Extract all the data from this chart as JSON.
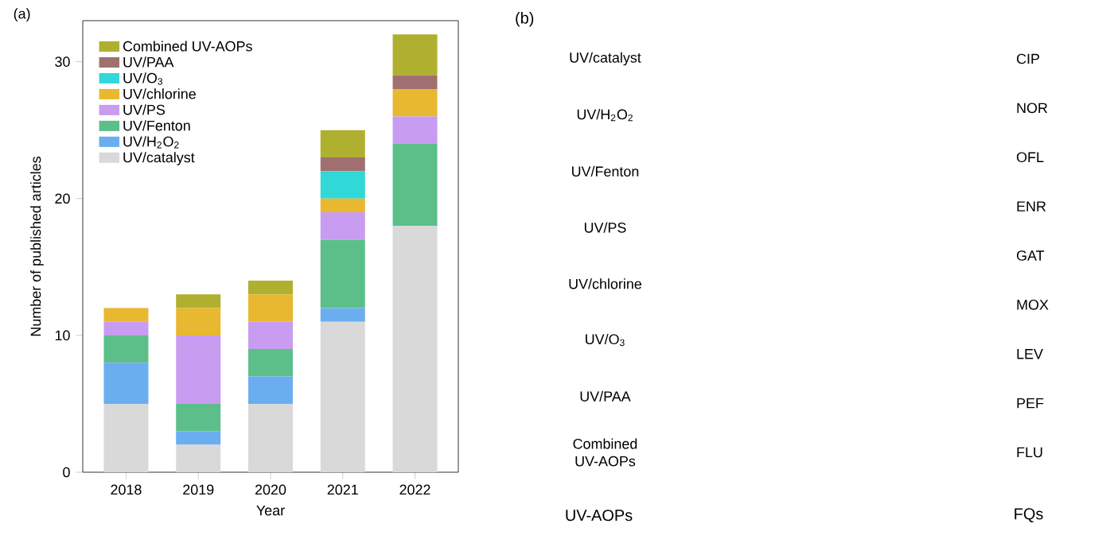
{
  "chart_data": [
    {
      "type": "bar",
      "title": "(a)",
      "xlabel": "Year",
      "ylabel": "Number of published articles",
      "categories": [
        "2018",
        "2019",
        "2020",
        "2021",
        "2022"
      ],
      "stacked": true,
      "legend": "top left",
      "ylim": [
        0,
        33
      ],
      "yticks": [
        0,
        10,
        20,
        30
      ],
      "series": [
        {
          "name": "UV/catalyst",
          "color": "#d9d9d9",
          "values": [
            5,
            2,
            5,
            11,
            18
          ]
        },
        {
          "name": "UV/H$_{2}$O$_{2}$",
          "color": "#6aaef0",
          "values": [
            3,
            1,
            2,
            1,
            0
          ]
        },
        {
          "name": "UV/Fenton",
          "color": "#5cbf8a",
          "values": [
            2,
            2,
            2,
            5,
            6
          ]
        },
        {
          "name": "UV/PS",
          "color": "#c89cf0",
          "values": [
            1,
            5,
            2,
            2,
            2
          ]
        },
        {
          "name": "UV/chlorine",
          "color": "#e8b830",
          "values": [
            1,
            2,
            2,
            1,
            2
          ]
        },
        {
          "name": "UV/O$_{3}$",
          "color": "#30d8d8",
          "values": [
            0,
            0,
            0,
            2,
            0
          ]
        },
        {
          "name": "UV/PAA",
          "color": "#a07070",
          "values": [
            0,
            0,
            0,
            1,
            1
          ]
        },
        {
          "name": "Combined UV-AOPs",
          "color": "#b0b030",
          "values": [
            0,
            1,
            1,
            2,
            3
          ]
        }
      ]
    },
    {
      "type": "other",
      "title": "(b)",
      "xlabel": "UV-AOPs",
      "y2label": "FQs",
      "categories": [
        "UV/catalyst",
        "UV/H$_{2}$O$_{2}$",
        "UV/Fenton",
        "UV/PS",
        "UV/chlorine",
        "UV/O$_{3}$",
        "UV/PAA",
        "Combined UV-AOPs"
      ],
      "annotations": [
        "CIP",
        "NOR",
        "OFL",
        "ENR",
        "GAT",
        "MOX",
        "LEV",
        "PEF",
        "FLU"
      ]
    }
  ]
}
